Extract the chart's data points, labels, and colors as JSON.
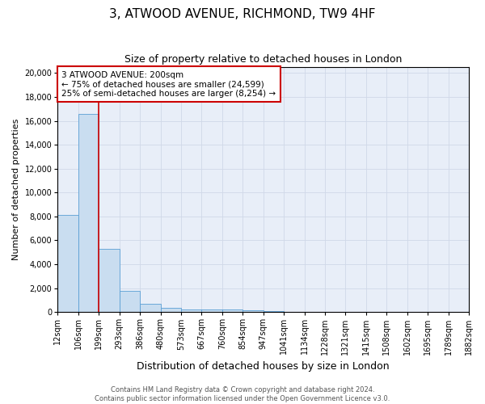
{
  "title": "3, ATWOOD AVENUE, RICHMOND, TW9 4HF",
  "subtitle": "Size of property relative to detached houses in London",
  "xlabel": "Distribution of detached houses by size in London",
  "ylabel": "Number of detached properties",
  "footer_line1": "Contains HM Land Registry data © Crown copyright and database right 2024.",
  "footer_line2": "Contains public sector information licensed under the Open Government Licence v3.0.",
  "bar_values": [
    8100,
    16600,
    5300,
    1800,
    700,
    350,
    250,
    200,
    200,
    150,
    50,
    30,
    20,
    15,
    10,
    8,
    5,
    4,
    3,
    2
  ],
  "bin_labels": [
    "12sqm",
    "106sqm",
    "199sqm",
    "293sqm",
    "386sqm",
    "480sqm",
    "573sqm",
    "667sqm",
    "760sqm",
    "854sqm",
    "947sqm",
    "1041sqm",
    "1134sqm",
    "1228sqm",
    "1321sqm",
    "1415sqm",
    "1508sqm",
    "1602sqm",
    "1695sqm",
    "1789sqm",
    "1882sqm"
  ],
  "bar_color": "#c9ddf0",
  "bar_edge_color": "#5a9fd4",
  "red_line_index": 2,
  "red_line_color": "#cc0000",
  "annotation_text": "3 ATWOOD AVENUE: 200sqm\n← 75% of detached houses are smaller (24,599)\n25% of semi-detached houses are larger (8,254) →",
  "annotation_box_color": "#cc0000",
  "annotation_bg": "#ffffff",
  "ylim": [
    0,
    20500
  ],
  "yticks": [
    0,
    2000,
    4000,
    6000,
    8000,
    10000,
    12000,
    14000,
    16000,
    18000,
    20000
  ],
  "grid_color": "#d0d8e8",
  "bg_color": "#e8eef8",
  "title_fontsize": 11,
  "subtitle_fontsize": 9,
  "xlabel_fontsize": 9,
  "ylabel_fontsize": 8,
  "tick_fontsize": 7,
  "footer_fontsize": 6,
  "annotation_fontsize": 7.5
}
